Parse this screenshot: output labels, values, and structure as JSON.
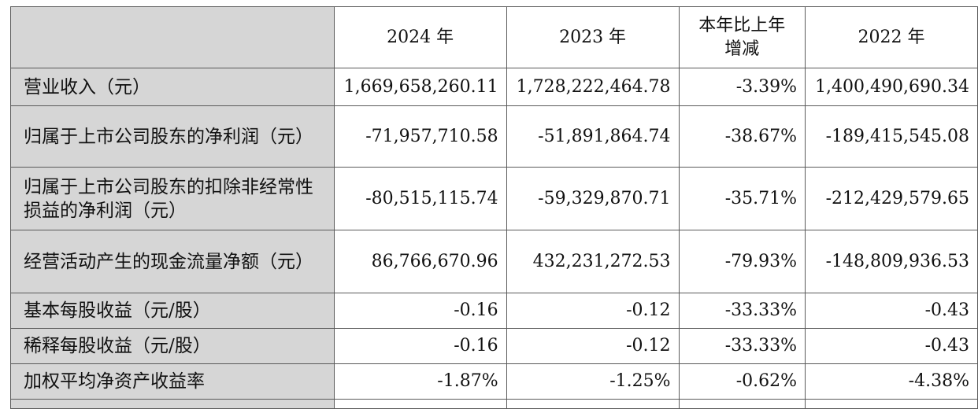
{
  "table": {
    "headers": [
      "",
      "2024 年",
      "2023 年",
      "本年比上年增减",
      "2022 年"
    ],
    "rows": [
      {
        "label": "营业收入（元）",
        "values": [
          "1,669,658,260.11",
          "1,728,222,464.78",
          "-3.39%",
          "1,400,490,690.34"
        ]
      },
      {
        "label": "归属于上市公司股东的净利润（元）",
        "values": [
          "-71,957,710.58",
          "-51,891,864.74",
          "-38.67%",
          "-189,415,545.08"
        ]
      },
      {
        "label": "归属于上市公司股东的扣除非经常性损益的净利润（元）",
        "values": [
          "-80,515,115.74",
          "-59,329,870.71",
          "-35.71%",
          "-212,429,579.65"
        ]
      },
      {
        "label": "经营活动产生的现金流量净额（元）",
        "values": [
          "86,766,670.96",
          "432,231,272.53",
          "-79.93%",
          "-148,809,936.53"
        ]
      },
      {
        "label": "基本每股收益（元/股）",
        "values": [
          "-0.16",
          "-0.12",
          "-33.33%",
          "-0.43"
        ]
      },
      {
        "label": "稀释每股收益（元/股）",
        "values": [
          "-0.16",
          "-0.12",
          "-33.33%",
          "-0.43"
        ]
      },
      {
        "label": "加权平均净资产收益率",
        "values": [
          "-1.87%",
          "-1.25%",
          "-0.62%",
          "-4.38%"
        ]
      }
    ]
  }
}
